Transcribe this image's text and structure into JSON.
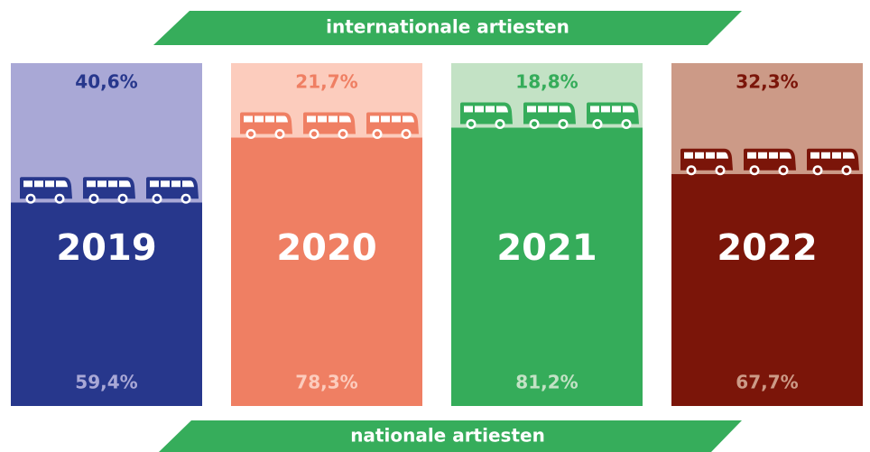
{
  "chart_data": {
    "type": "stacked-bar",
    "categories": [
      "2019",
      "2020",
      "2021",
      "2022"
    ],
    "ylim": [
      0,
      100
    ],
    "banner_color": "#36ad5b",
    "series": [
      {
        "name": "nationale artiesten",
        "colors": [
          "#27378c",
          "#ef7f63",
          "#35ac5a",
          "#7b1509"
        ],
        "values": [
          59.4,
          78.3,
          81.2,
          67.7
        ],
        "value_labels": [
          "59,4%",
          "78,3%",
          "81,2%",
          "67,7%"
        ]
      },
      {
        "name": "internationale artiesten",
        "colors": [
          "#a9a8d6",
          "#fcccbd",
          "#c3e2c5",
          "#cc9a87"
        ],
        "values": [
          40.6,
          21.7,
          18.8,
          32.3
        ],
        "value_labels": [
          "40,6%",
          "21,7%",
          "18,8%",
          "32,3%"
        ]
      }
    ]
  }
}
